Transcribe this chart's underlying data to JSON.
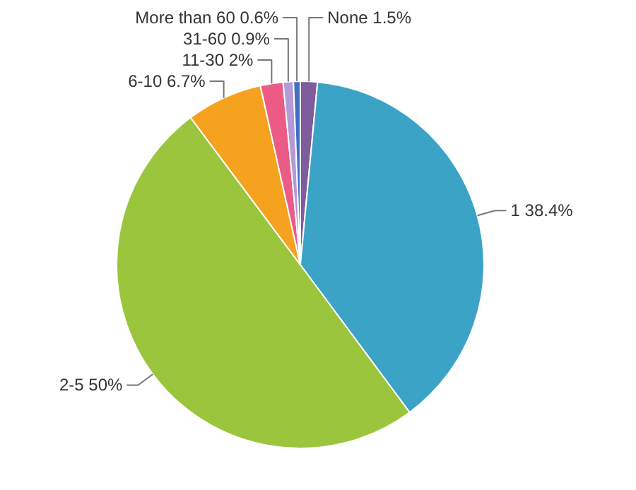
{
  "chart_data": {
    "type": "pie",
    "categories": [
      "None",
      "1",
      "2-5",
      "6-10",
      "11-30",
      "31-60",
      "More than 60"
    ],
    "values": [
      1.5,
      38.4,
      50,
      6.7,
      2,
      0.9,
      0.6
    ],
    "colors": [
      "#7e5c9e",
      "#3ba3c6",
      "#9bc53d",
      "#f5a21f",
      "#ec5a86",
      "#b49ad6",
      "#3f6fc7"
    ],
    "value_labels": [
      "1.5%",
      "38.4%",
      "50%",
      "6.7%",
      "2%",
      "0.9%",
      "0.6%"
    ]
  }
}
